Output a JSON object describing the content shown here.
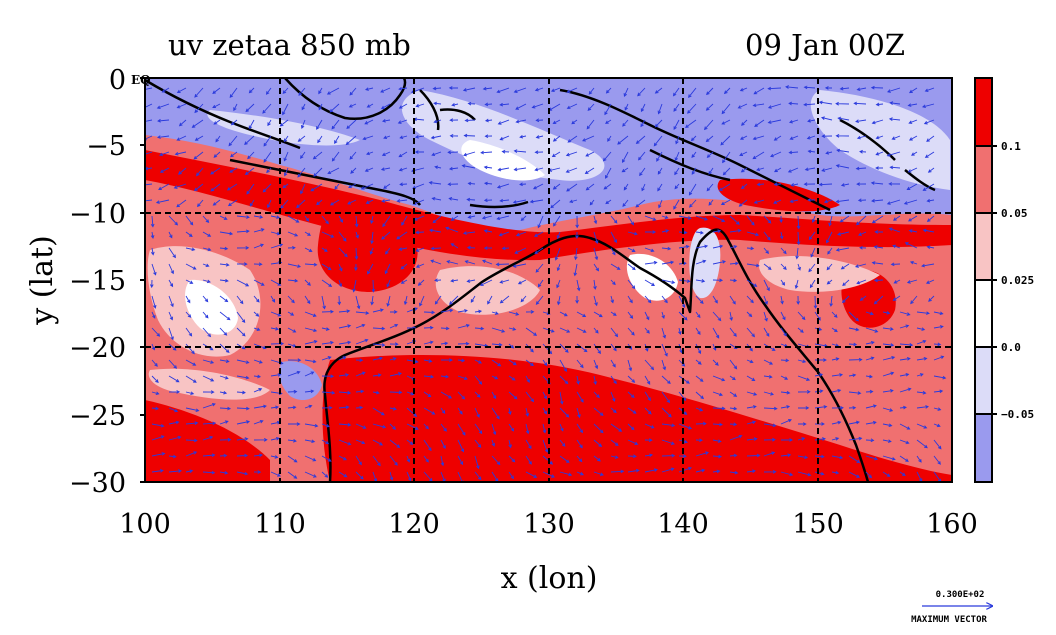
{
  "title_left": "uv zetaa 850 mb",
  "title_right": "09 Jan 00Z",
  "x_axis": {
    "label": "x (lon)",
    "ticks": [
      "100",
      "110",
      "120",
      "130",
      "140",
      "150",
      "160"
    ]
  },
  "y_axis": {
    "label": "y (lat)",
    "ticks": [
      "0",
      "−5",
      "−10",
      "−15",
      "−20",
      "−25",
      "−30"
    ],
    "eq_label": "EQ"
  },
  "colorbar": {
    "labels": [
      "0.1",
      "0.05",
      "0.025",
      "0.0",
      "−0.05"
    ],
    "colors": [
      "#ee0000",
      "#f07070",
      "#f8c4c4",
      "#ffffff",
      "#dcdcf8",
      "#9a9aee"
    ]
  },
  "vector_key": {
    "value": "0.300E+02",
    "label": "MAXIMUM VECTOR"
  },
  "colors": {
    "strong_positive": "#ee0000",
    "positive": "#f07070",
    "weak_positive": "#f8c4c4",
    "weak_negative": "#dcdcf8",
    "negative": "#9a9aee",
    "vector": "#2a3adc",
    "coast": "#000000"
  },
  "map_extent": {
    "lon": [
      100,
      160
    ],
    "lat": [
      -30,
      0
    ]
  }
}
